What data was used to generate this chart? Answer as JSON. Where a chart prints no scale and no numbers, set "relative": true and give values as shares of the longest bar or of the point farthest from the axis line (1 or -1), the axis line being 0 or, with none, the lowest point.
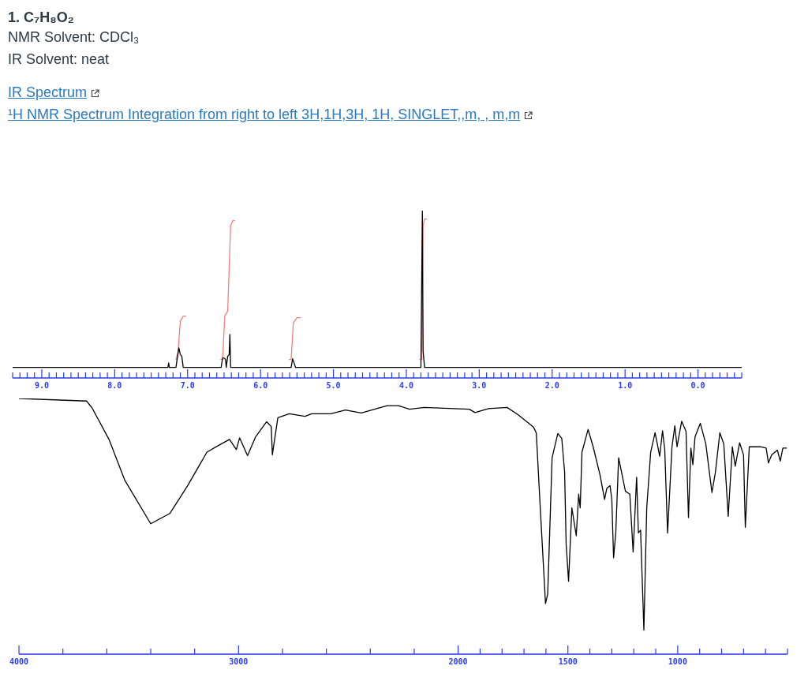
{
  "chart_data": [
    {
      "type": "line",
      "title": "1. C₇H₈O₂",
      "annotations": [
        "NMR Solvent: CDCl₃",
        "IR Solvent: neat",
        "IR Spectrum",
        "¹H NMR Spectrum  Integration from right to left 3H,1H,3H, 1H,   SINGLET,,m, , m,m"
      ],
      "relative": true,
      "tick_labels": "x",
      "grid": false,
      "legend": false,
      "xlim": [
        9.4,
        -0.6
      ],
      "xticks": [
        {
          "value": 9.4,
          "label": null
        },
        {
          "value": 9.3,
          "label": null
        },
        {
          "value": 9.2,
          "label": null
        },
        {
          "value": 9.1,
          "label": null
        },
        {
          "value": 9,
          "label": "9.0"
        },
        {
          "value": 8.9,
          "label": null
        },
        {
          "value": 8.8,
          "label": null
        },
        {
          "value": 8.7,
          "label": null
        },
        {
          "value": 8.6,
          "label": null
        },
        {
          "value": 8.5,
          "label": null
        },
        {
          "value": 8.4,
          "label": null
        },
        {
          "value": 8.3,
          "label": null
        },
        {
          "value": 8.2,
          "label": null
        },
        {
          "value": 8.1,
          "label": null
        },
        {
          "value": 8,
          "label": "8.0"
        },
        {
          "value": 7.9,
          "label": null
        },
        {
          "value": 7.8,
          "label": null
        },
        {
          "value": 7.7,
          "label": null
        },
        {
          "value": 7.6,
          "label": null
        },
        {
          "value": 7.5,
          "label": null
        },
        {
          "value": 7.4,
          "label": null
        },
        {
          "value": 7.3,
          "label": null
        },
        {
          "value": 7.2,
          "label": null
        },
        {
          "value": 7.1,
          "label": null
        },
        {
          "value": 7,
          "label": "7.0"
        },
        {
          "value": 6.9,
          "label": null
        },
        {
          "value": 6.8,
          "label": null
        },
        {
          "value": 6.7,
          "label": null
        },
        {
          "value": 6.6,
          "label": null
        },
        {
          "value": 6.5,
          "label": null
        },
        {
          "value": 6.4,
          "label": null
        },
        {
          "value": 6.3,
          "label": null
        },
        {
          "value": 6.2,
          "label": null
        },
        {
          "value": 6.1,
          "label": null
        },
        {
          "value": 6,
          "label": "6.0"
        },
        {
          "value": 5.9,
          "label": null
        },
        {
          "value": 5.8,
          "label": null
        },
        {
          "value": 5.7,
          "label": null
        },
        {
          "value": 5.6,
          "label": null
        },
        {
          "value": 5.5,
          "label": null
        },
        {
          "value": 5.4,
          "label": null
        },
        {
          "value": 5.3,
          "label": null
        },
        {
          "value": 5.2,
          "label": null
        },
        {
          "value": 5.1,
          "label": null
        },
        {
          "value": 5,
          "label": "5.0"
        },
        {
          "value": 4.9,
          "label": null
        },
        {
          "value": 4.8,
          "label": null
        },
        {
          "value": 4.7,
          "label": null
        },
        {
          "value": 4.6,
          "label": null
        },
        {
          "value": 4.5,
          "label": null
        },
        {
          "value": 4.4,
          "label": null
        },
        {
          "value": 4.3,
          "label": null
        },
        {
          "value": 4.2,
          "label": null
        },
        {
          "value": 4.1,
          "label": null
        },
        {
          "value": 4,
          "label": "4.0"
        },
        {
          "value": 3.9,
          "label": null
        },
        {
          "value": 3.8,
          "label": null
        },
        {
          "value": 3.7,
          "label": null
        },
        {
          "value": 3.6,
          "label": null
        },
        {
          "value": 3.5,
          "label": null
        },
        {
          "value": 3.4,
          "label": null
        },
        {
          "value": 3.3,
          "label": null
        },
        {
          "value": 3.2,
          "label": null
        },
        {
          "value": 3.1,
          "label": null
        },
        {
          "value": 3,
          "label": "3.0"
        },
        {
          "value": 2.9,
          "label": null
        },
        {
          "value": 2.8,
          "label": null
        },
        {
          "value": 2.7,
          "label": null
        },
        {
          "value": 2.6,
          "label": null
        },
        {
          "value": 2.5,
          "label": null
        },
        {
          "value": 2.4,
          "label": null
        },
        {
          "value": 2.3,
          "label": null
        },
        {
          "value": 2.2,
          "label": null
        },
        {
          "value": 2.1,
          "label": null
        },
        {
          "value": 2,
          "label": "2.0"
        },
        {
          "value": 1.9,
          "label": null
        },
        {
          "value": 1.8,
          "label": null
        },
        {
          "value": 1.7,
          "label": null
        },
        {
          "value": 1.6,
          "label": null
        },
        {
          "value": 1.5,
          "label": null
        },
        {
          "value": 1.4,
          "label": null
        },
        {
          "value": 1.3,
          "label": null
        },
        {
          "value": 1.2,
          "label": null
        },
        {
          "value": 1.1,
          "label": null
        },
        {
          "value": 1,
          "label": "1.0"
        },
        {
          "value": 0.9,
          "label": null
        },
        {
          "value": 0.8,
          "label": null
        },
        {
          "value": 0.7,
          "label": null
        },
        {
          "value": 0.6,
          "label": null
        },
        {
          "value": 0.5,
          "label": null
        },
        {
          "value": 0.4,
          "label": null
        },
        {
          "value": 0.3,
          "label": null
        },
        {
          "value": 0.2,
          "label": null
        },
        {
          "value": 0.1,
          "label": null
        },
        {
          "value": 0,
          "label": "0.0"
        },
        {
          "value": -0.1,
          "label": null
        },
        {
          "value": -0.2,
          "label": null
        },
        {
          "value": -0.3,
          "label": null
        },
        {
          "value": -0.4,
          "label": null
        },
        {
          "value": -0.5,
          "label": null
        },
        {
          "value": -0.6,
          "label": null
        }
      ],
      "series": [
        {
          "color": "#000000",
          "x": [
            9.4,
            7.27,
            7.26,
            7.25,
            7.16,
            7.13,
            7.12,
            7.1,
            7.08,
            7.06,
            6.54,
            6.52,
            6.5,
            6.48,
            6.47,
            6.45,
            6.43,
            6.42,
            6.41,
            5.58,
            5.56,
            5.54,
            5.52,
            3.8,
            3.78,
            3.77,
            3.75,
            -0.6
          ],
          "values": [
            0.063,
            0.063,
            0.09,
            0.063,
            0.063,
            0.15,
            0.18,
            0.14,
            0.13,
            0.063,
            0.063,
            0.12,
            0.12,
            0.11,
            0.063,
            0.13,
            0.14,
            0.26,
            0.063,
            0.063,
            0.115,
            0.09,
            0.063,
            0.063,
            1,
            0.16,
            0.063,
            0.063
          ]
        },
        {
          "color": "#f08080",
          "x": [
            7.16,
            7.13,
            7.1,
            7.06,
            7.02,
            6.8,
            6.55,
            6.52,
            6.49,
            6.45,
            6.41,
            6.38,
            6.35,
            6,
            5.61,
            5.58,
            5.55,
            5.5,
            5.45,
            4.5,
            3.82,
            3.79,
            3.77,
            3.75,
            3.72
          ],
          "values": [
            0.107,
            0.16,
            0.34,
            0.37,
            0.37,
            null,
            0.11,
            0.11,
            0.37,
            0.4,
            0.91,
            0.94,
            0.94,
            null,
            0.11,
            0.11,
            0.33,
            0.36,
            0.36,
            null,
            0.11,
            0.11,
            0.91,
            0.95,
            0.95
          ]
        }
      ]
    },
    {
      "type": "line",
      "relative": true,
      "tick_labels": "x",
      "grid": false,
      "legend": false,
      "xlim": [
        4000,
        500
      ],
      "xticks": [
        4000,
        {
          "value": 3800,
          "label": null
        },
        {
          "value": 3600,
          "label": null
        },
        {
          "value": 3400,
          "label": null
        },
        {
          "value": 3200,
          "label": null
        },
        3000,
        {
          "value": 2800,
          "label": null
        },
        {
          "value": 2600,
          "label": null
        },
        {
          "value": 2400,
          "label": null
        },
        {
          "value": 2200,
          "label": null
        },
        2000,
        {
          "value": 1900,
          "label": null
        },
        {
          "value": 1800,
          "label": null
        },
        {
          "value": 1700,
          "label": null
        },
        {
          "value": 1600,
          "label": null
        },
        1500,
        {
          "value": 1400,
          "label": null
        },
        {
          "value": 1300,
          "label": null
        },
        {
          "value": 1200,
          "label": null
        },
        {
          "value": 1100,
          "label": null
        },
        1000,
        {
          "value": 900,
          "label": null
        },
        {
          "value": 800,
          "label": null
        },
        {
          "value": 700,
          "label": null
        },
        {
          "value": 600,
          "label": null
        },
        {
          "value": 500,
          "label": null
        }
      ],
      "series": [
        {
          "color": "#000000",
          "x": [
            4000,
            3692,
            3667,
            3590,
            3518,
            3400,
            3313,
            3231,
            3144,
            3092,
            3041,
            3010,
            2995,
            2959,
            2923,
            2872,
            2851,
            2846,
            2821,
            2769,
            2697,
            2667,
            2580,
            2513,
            2441,
            2323,
            2272,
            2221,
            2154,
            1949,
            1923,
            1862,
            1777,
            1726,
            1656,
            1644,
            1628,
            1602,
            1592,
            1572,
            1546,
            1528,
            1515,
            1508,
            1497,
            1482,
            1462,
            1451,
            1444,
            1436,
            1408,
            1385,
            1354,
            1333,
            1323,
            1308,
            1300,
            1292,
            1282,
            1269,
            1238,
            1218,
            1203,
            1187,
            1179,
            1169,
            1154,
            1141,
            1123,
            1103,
            1082,
            1069,
            1059,
            1046,
            1026,
            1013,
            1003,
            982,
            962,
            951,
            940,
            931,
            921,
            897,
            872,
            844,
            828,
            808,
            790,
            770,
            751,
            738,
            718,
            700,
            692,
            674,
            623,
            597,
            587,
            572,
            546,
            533,
            521,
            503
          ],
          "values": [
            1,
            0.99,
            0.963,
            0.84,
            0.68,
            0.51,
            0.55,
            0.66,
            0.79,
            0.816,
            0.84,
            0.8,
            0.846,
            0.776,
            0.849,
            0.909,
            0.89,
            0.78,
            0.925,
            0.94,
            0.93,
            0.94,
            0.94,
            0.955,
            0.943,
            0.972,
            0.972,
            0.958,
            0.965,
            0.958,
            0.945,
            0.96,
            0.965,
            0.936,
            0.887,
            0.865,
            0.605,
            0.198,
            0.235,
            0.768,
            0.863,
            0.844,
            0.713,
            0.431,
            0.285,
            0.572,
            0.463,
            0.626,
            0.572,
            0.79,
            0.879,
            0.811,
            0.702,
            0.605,
            0.648,
            0.659,
            0.605,
            0.377,
            0.474,
            0.768,
            0.637,
            0.626,
            0.399,
            0.692,
            0.474,
            0.485,
            0.094,
            0.572,
            0.79,
            0.866,
            0.774,
            0.874,
            0.8,
            0.474,
            0.811,
            0.893,
            0.811,
            0.911,
            0.871,
            0.534,
            0.806,
            0.741,
            0.85,
            0.903,
            0.822,
            0.632,
            0.713,
            0.866,
            0.822,
            0.539,
            0.811,
            0.735,
            0.827,
            0.778,
            0.496,
            0.811,
            0.811,
            0.806,
            0.748,
            0.779,
            0.798,
            0.755,
            0.806,
            0.806
          ]
        }
      ]
    }
  ]
}
